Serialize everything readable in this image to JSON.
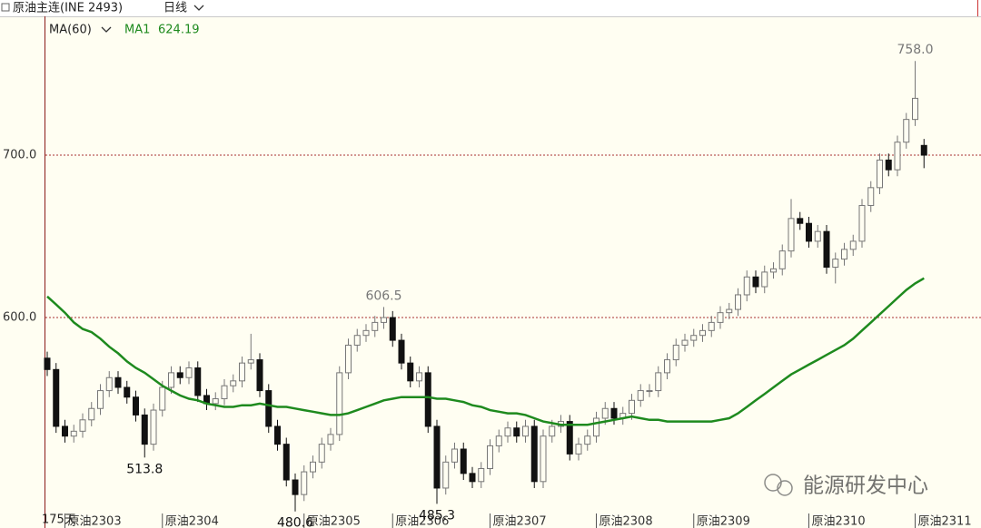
{
  "chart_data": {
    "type": "candlestick",
    "title": "原油主连(INE 2493)",
    "period": "日线",
    "indicator": "MA(60)",
    "bar_count": "175天",
    "watermark": "能源研发中心",
    "ylim": [
      470.4,
      785.5
    ],
    "yticks": [
      {
        "value": 700,
        "label": "700.0"
      },
      {
        "value": 600,
        "label": "600.0"
      }
    ],
    "grid": true,
    "up_color": "#fffef2",
    "down_color": "#111111",
    "categories": [
      null,
      null,
      "原油2303",
      null,
      null,
      null,
      null,
      null,
      null,
      null,
      null,
      null,
      null,
      "原油2304",
      null,
      null,
      null,
      null,
      null,
      null,
      null,
      null,
      null,
      null,
      null,
      null,
      null,
      null,
      null,
      "原油2305",
      null,
      null,
      null,
      null,
      null,
      null,
      null,
      null,
      null,
      "原油2306",
      null,
      null,
      null,
      null,
      null,
      null,
      null,
      null,
      null,
      null,
      "原油2307",
      null,
      null,
      null,
      null,
      null,
      null,
      null,
      null,
      null,
      null,
      null,
      "原油2308",
      null,
      null,
      null,
      null,
      null,
      null,
      null,
      null,
      null,
      null,
      "原油2309",
      null,
      null,
      null,
      null,
      null,
      null,
      null,
      null,
      null,
      null,
      null,
      null,
      "原油2310",
      null,
      null,
      null,
      null,
      null,
      null,
      null,
      null,
      null,
      null,
      null,
      "原油2311",
      null
    ],
    "open": [
      575,
      568,
      533,
      527,
      530,
      537,
      544,
      555,
      563,
      557,
      551,
      540,
      522,
      543,
      557,
      566,
      563,
      569,
      552,
      547,
      550,
      558,
      561,
      572,
      574,
      555,
      533,
      522,
      500,
      491,
      505,
      511,
      522,
      528,
      566,
      583,
      589,
      592,
      597,
      600,
      586,
      572,
      561,
      566,
      533,
      495,
      511,
      519,
      504,
      499,
      507,
      521,
      527,
      532,
      527,
      533,
      499,
      527,
      533,
      536,
      516,
      522,
      527,
      538,
      544,
      538,
      541,
      549,
      555,
      555,
      566,
      574,
      583,
      586,
      589,
      592,
      597,
      603,
      605,
      614,
      625,
      619,
      628,
      630,
      641,
      661,
      658,
      647,
      653,
      631,
      636,
      642,
      647,
      669,
      680,
      697,
      691,
      708,
      722,
      706
    ],
    "high": [
      579,
      572,
      537,
      534,
      541,
      548,
      559,
      567,
      567,
      561,
      555,
      544,
      547,
      561,
      570,
      570,
      573,
      573,
      556,
      554,
      562,
      565,
      576,
      590,
      578,
      559,
      537,
      526,
      504,
      509,
      515,
      526,
      532,
      570,
      587,
      593,
      596,
      601,
      606.5,
      604,
      590,
      576,
      570,
      570,
      537,
      515,
      523,
      523,
      508,
      511,
      525,
      531,
      536,
      536,
      537,
      537,
      531,
      537,
      540,
      540,
      526,
      531,
      542,
      548,
      548,
      545,
      553,
      559,
      559,
      570,
      578,
      587,
      590,
      593,
      596,
      601,
      607,
      609,
      618,
      629,
      629,
      632,
      634,
      645,
      673,
      665,
      662,
      657,
      657,
      640,
      646,
      651,
      673,
      684,
      701,
      701,
      712,
      726,
      758,
      710
    ],
    "low": [
      564,
      529,
      523,
      523,
      526,
      533,
      540,
      551,
      553,
      547,
      536,
      513.8,
      518,
      539,
      553,
      559,
      559,
      548,
      543,
      543,
      546,
      554,
      557,
      568,
      551,
      529,
      518,
      496,
      480.6,
      487,
      501,
      507,
      518,
      524,
      562,
      579,
      585,
      588,
      593,
      582,
      568,
      557,
      557,
      529,
      485.3,
      491,
      507,
      500,
      495,
      495,
      503,
      517,
      523,
      523,
      523,
      495,
      495,
      523,
      529,
      512,
      512,
      518,
      523,
      534,
      534,
      534,
      537,
      545,
      551,
      551,
      562,
      570,
      579,
      582,
      585,
      588,
      593,
      599,
      601,
      610,
      615,
      615,
      624,
      626,
      637,
      654,
      643,
      643,
      627,
      621,
      632,
      638,
      643,
      665,
      676,
      687,
      687,
      704,
      718,
      692
    ],
    "close": [
      568,
      533,
      527,
      530,
      537,
      544,
      555,
      563,
      557,
      551,
      540,
      522,
      543,
      557,
      566,
      563,
      569,
      552,
      547,
      550,
      558,
      561,
      572,
      574,
      555,
      533,
      522,
      500,
      491,
      505,
      511,
      522,
      528,
      566,
      583,
      589,
      592,
      597,
      600,
      586,
      572,
      561,
      566,
      533,
      495,
      511,
      519,
      504,
      499,
      507,
      521,
      527,
      532,
      527,
      533,
      499,
      527,
      533,
      536,
      516,
      522,
      527,
      538,
      544,
      538,
      541,
      549,
      555,
      555,
      566,
      574,
      583,
      586,
      589,
      592,
      597,
      603,
      605,
      614,
      625,
      619,
      628,
      630,
      641,
      661,
      658,
      647,
      653,
      631,
      636,
      642,
      647,
      669,
      680,
      697,
      691,
      708,
      722,
      735,
      700
    ],
    "ma": {
      "name": "MA1",
      "color": "#1e8a1e",
      "values": [
        613,
        608,
        603,
        597,
        593,
        591,
        587,
        582,
        578,
        573,
        569,
        566,
        562,
        558,
        555,
        552,
        550,
        549,
        547,
        546,
        545,
        545,
        546,
        546,
        547,
        546,
        545,
        545,
        544,
        543,
        542,
        541,
        540,
        540,
        541,
        543,
        545,
        547,
        549,
        550,
        551,
        551,
        551,
        551,
        550,
        550,
        549,
        548,
        546,
        545,
        543,
        542,
        541,
        541,
        540,
        538,
        536,
        535,
        534,
        534,
        534,
        534,
        535,
        536,
        537,
        538,
        539,
        538,
        537,
        537,
        536,
        536,
        536,
        536,
        536,
        536,
        537,
        538,
        541,
        545,
        549,
        553,
        557,
        561,
        565,
        568,
        571,
        574,
        577,
        580,
        583,
        587,
        592,
        597,
        602,
        607,
        612,
        617,
        621,
        624.19
      ]
    },
    "annotations": [
      {
        "value": 758,
        "label": "758.0"
      },
      {
        "value": 606.5,
        "label": "606.5"
      },
      {
        "value": 513.8,
        "label": "513.8"
      },
      {
        "value": 480.6,
        "label": "480.6"
      },
      {
        "value": 485.3,
        "label": "485.3"
      }
    ]
  }
}
